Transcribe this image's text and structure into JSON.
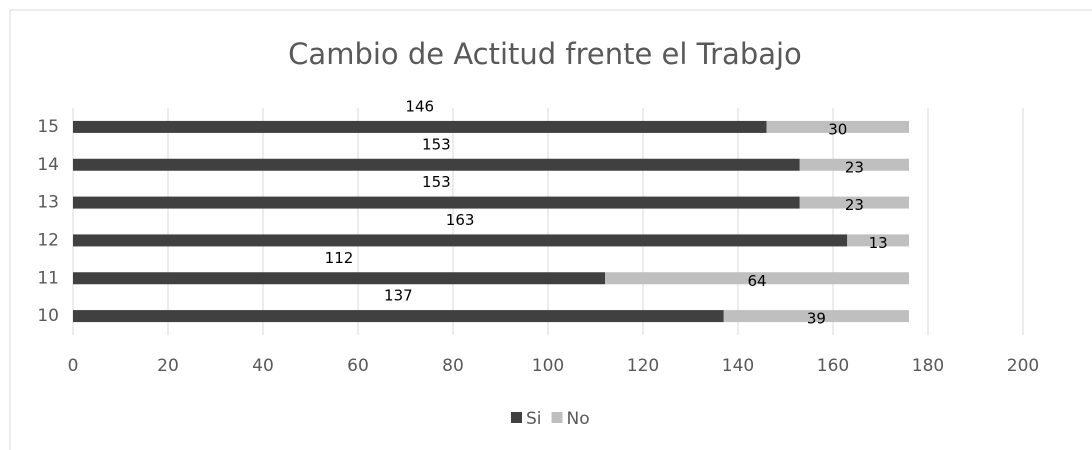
{
  "chart_data": {
    "type": "stacked-barh",
    "title": "Cambio de Actitud frente el Trabajo",
    "categories": [
      "10",
      "11",
      "12",
      "13",
      "14",
      "15"
    ],
    "series": [
      {
        "name": "Si",
        "color": "#404040",
        "values": [
          137,
          112,
          163,
          153,
          153,
          146
        ]
      },
      {
        "name": "No",
        "color": "#bfbfbf",
        "values": [
          39,
          64,
          13,
          23,
          23,
          30
        ]
      }
    ],
    "xlim": [
      0,
      200
    ],
    "xticks": [
      0,
      20,
      40,
      60,
      80,
      100,
      120,
      140,
      160,
      180,
      200
    ],
    "grid": true,
    "legend": "bottom"
  }
}
